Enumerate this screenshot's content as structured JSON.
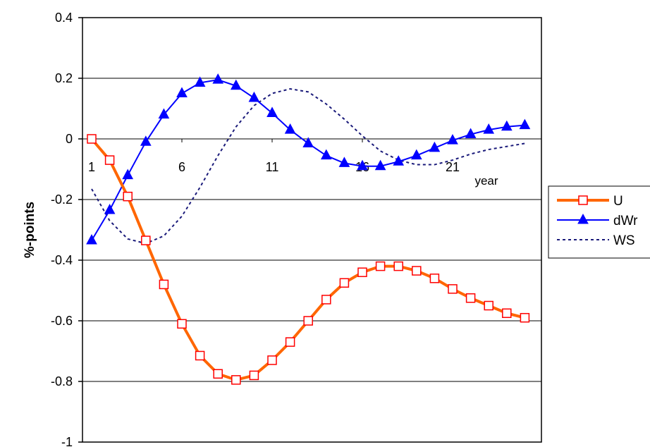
{
  "chart_data": {
    "type": "line",
    "title": "",
    "xlabel": "year",
    "ylabel": "%-points",
    "ylim": [
      -1,
      0.4
    ],
    "yticks": [
      0.4,
      0.2,
      0,
      -0.2,
      -0.4,
      -0.6,
      -0.8,
      -1
    ],
    "ytick_labels": [
      "0.4",
      "0.2",
      "0",
      "-0.2",
      "-0.4",
      "-0.6",
      "-0.8",
      "-1"
    ],
    "xlim": [
      1,
      25
    ],
    "xticks": [
      1,
      6,
      11,
      16,
      21
    ],
    "xtick_labels": [
      "1",
      "6",
      "11",
      "16",
      "21"
    ],
    "grid": "horizontal",
    "legend_position": "right",
    "x": [
      1,
      2,
      3,
      4,
      5,
      6,
      7,
      8,
      9,
      10,
      11,
      12,
      13,
      14,
      15,
      16,
      17,
      18,
      19,
      20,
      21,
      22,
      23,
      24,
      25
    ],
    "series": [
      {
        "name": "U",
        "color": "#ff6600",
        "marker": "square-open",
        "line": "solid-thick",
        "values": [
          0,
          -0.07,
          -0.19,
          -0.335,
          -0.48,
          -0.61,
          -0.715,
          -0.775,
          -0.795,
          -0.78,
          -0.73,
          -0.67,
          -0.6,
          -0.53,
          -0.475,
          -0.44,
          -0.42,
          -0.42,
          -0.435,
          -0.46,
          -0.495,
          -0.525,
          -0.55,
          -0.575,
          -0.59
        ]
      },
      {
        "name": "dWr",
        "color": "#0000ff",
        "marker": "triangle-filled",
        "line": "solid",
        "values": [
          -0.335,
          -0.235,
          -0.12,
          -0.01,
          0.08,
          0.15,
          0.185,
          0.195,
          0.175,
          0.135,
          0.085,
          0.03,
          -0.015,
          -0.055,
          -0.08,
          -0.09,
          -0.09,
          -0.075,
          -0.055,
          -0.03,
          -0.005,
          0.015,
          0.03,
          0.04,
          0.045
        ]
      },
      {
        "name": "WS",
        "color": "#1a1a7a",
        "marker": "none",
        "line": "dotted",
        "values": [
          -0.165,
          -0.27,
          -0.33,
          -0.345,
          -0.32,
          -0.255,
          -0.16,
          -0.055,
          0.04,
          0.11,
          0.15,
          0.165,
          0.155,
          0.115,
          0.065,
          0.01,
          -0.04,
          -0.07,
          -0.085,
          -0.085,
          -0.07,
          -0.05,
          -0.035,
          -0.025,
          -0.015
        ]
      }
    ]
  }
}
